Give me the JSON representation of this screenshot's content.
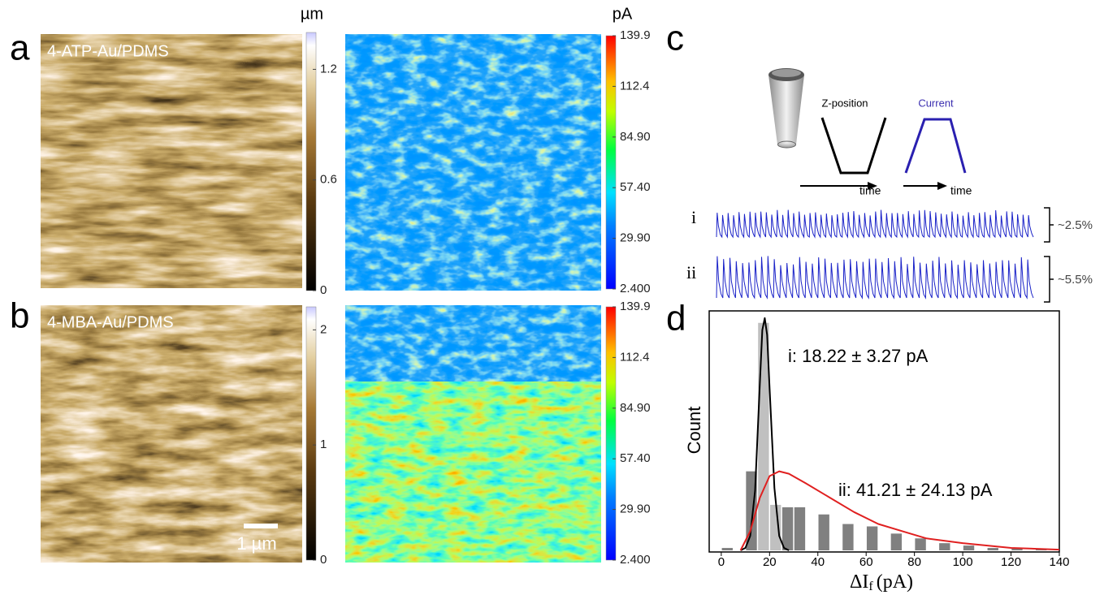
{
  "panels": {
    "a": {
      "label": "a",
      "sample": "4-ATP-Au/PDMS",
      "height_bar": {
        "unit": "µm",
        "lim": [
          0,
          1.4
        ],
        "ticks": [
          0,
          0.6,
          1.2
        ]
      },
      "current_bar": {
        "unit": "pA",
        "lim": [
          2.4,
          139.9
        ],
        "ticks": [
          139.9,
          112.4,
          {
            "value": 84.9,
            "label": "84.90"
          },
          {
            "value": 57.4,
            "label": "57.40"
          },
          {
            "value": 29.9,
            "label": "29.90"
          },
          {
            "value": 2.4,
            "label": "2.400"
          }
        ]
      }
    },
    "b": {
      "label": "b",
      "sample": "4-MBA-Au/PDMS",
      "scale_bar": "1 µm",
      "height_bar": {
        "lim": [
          0,
          2.2
        ],
        "ticks": [
          0,
          1,
          2
        ]
      },
      "current_bar": {
        "lim": [
          2.4,
          139.9
        ],
        "ticks": [
          139.9,
          112.4,
          {
            "value": 84.9,
            "label": "84.90"
          },
          {
            "value": 57.4,
            "label": "57.40"
          },
          {
            "value": 29.9,
            "label": "29.90"
          },
          {
            "value": 2.4,
            "label": "2.400"
          }
        ]
      }
    },
    "c": {
      "label": "c",
      "z_label": "Z-position",
      "current_label": "Current",
      "time_label_1": "time",
      "time_label_2": "time",
      "trace_i": "i",
      "trace_ii": "ii",
      "amp_i": "~2.5%",
      "amp_ii": "~5.5%"
    },
    "d": {
      "label": "d"
    }
  },
  "chart_data": {
    "type": "bar",
    "ylabel": "Count",
    "xlabel": {
      "main": "ΔI",
      "sub": "f",
      "unit": "(pA)"
    },
    "xlim": [
      -5,
      140
    ],
    "ylim": [
      0,
      100
    ],
    "xticks": [
      0,
      20,
      40,
      60,
      80,
      100,
      120,
      140
    ],
    "series": [
      {
        "color": "#c0c0c0",
        "x": [
          17.5,
          22.5
        ],
        "values": [
          95,
          19
        ]
      },
      {
        "color": "#808080",
        "x": [
          2.5,
          12.5,
          27.5,
          32.5,
          42.5,
          52.5,
          62.5,
          72.5,
          82.5,
          92.5,
          102.5,
          112.5,
          122.5,
          132.5
        ],
        "values": [
          1,
          33,
          18,
          18,
          15,
          11,
          10,
          7,
          5,
          3,
          2,
          1,
          1,
          0.5
        ]
      }
    ],
    "fits": [
      {
        "color": "#000000",
        "x": [
          8,
          10,
          12,
          14,
          16,
          17,
          18,
          19,
          20,
          22,
          24,
          26,
          28
        ],
        "values": [
          0,
          1,
          6,
          25,
          70,
          92,
          97,
          90,
          68,
          26,
          6,
          1,
          0
        ]
      },
      {
        "color": "#e02020",
        "x": [
          8,
          12,
          16,
          20,
          24,
          28,
          35,
          45,
          55,
          65,
          75,
          85,
          100,
          120,
          140
        ],
        "values": [
          0,
          8,
          22,
          31,
          33,
          32,
          28,
          22,
          16,
          11,
          8,
          5,
          3,
          1,
          0.3
        ]
      }
    ],
    "annotations": [
      "i: 18.22 ± 3.27 pA",
      "ii: 41.21 ± 24.13 pA"
    ]
  }
}
